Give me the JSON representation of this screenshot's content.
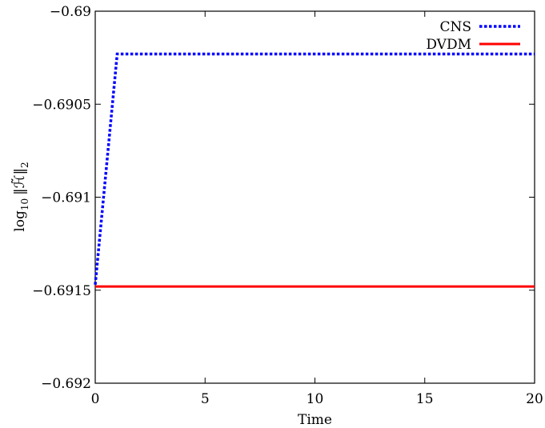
{
  "chart_data": {
    "type": "line",
    "title": "",
    "xlabel": "Time",
    "ylabel": "log10 ||H~||2",
    "ylabel_parts": {
      "main": "log",
      "sub": "10",
      "norm": "‖ℋ̃‖",
      "norm_sub": "2"
    },
    "xlim": [
      0,
      20
    ],
    "ylim": [
      -0.692,
      -0.69
    ],
    "x_ticks": [
      0,
      5,
      10,
      15,
      20
    ],
    "x_tick_labels": [
      "0",
      "5",
      "10",
      "15",
      "20"
    ],
    "y_ticks": [
      -0.692,
      -0.6915,
      -0.691,
      -0.6905,
      -0.69
    ],
    "y_tick_labels": [
      "−0.692",
      "−0.6915",
      "−0.691",
      "−0.6905",
      "−0.69"
    ],
    "grid": false,
    "legend_position": "top-right",
    "series": [
      {
        "name": "CNS",
        "color": "#0000ff",
        "style": "dotted",
        "x": [
          0,
          1,
          20
        ],
        "y": [
          -0.69147,
          -0.69023,
          -0.69023
        ]
      },
      {
        "name": "DVDM",
        "color": "#ff0000",
        "style": "solid",
        "x": [
          0,
          20
        ],
        "y": [
          -0.69148,
          -0.69148
        ]
      }
    ]
  }
}
